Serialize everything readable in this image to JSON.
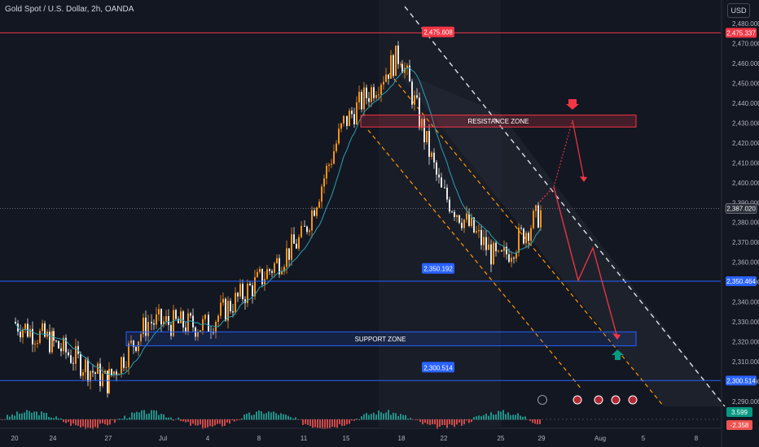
{
  "header": {
    "title": "Gold Spot / U.S. Dollar, 2h, OANDA",
    "currency": "USD"
  },
  "colors": {
    "background": "#131722",
    "bull": "#f7931a",
    "bear": "#e8e8e8",
    "ma": "#2aa0b5",
    "resistance": "#f23645",
    "support": "#2962ff",
    "arrow_red": "#f23645",
    "arrow_teal": "#089981"
  },
  "price_axis": {
    "ticks": [
      "2,480.000",
      "2,470.000",
      "2,460.000",
      "2,450.000",
      "2,440.000",
      "2,430.000",
      "2,420.000",
      "2,410.000",
      "2,400.000",
      "2,390.000",
      "2,380.000",
      "2,370.000",
      "2,360.000",
      "2,350.000",
      "2,340.000",
      "2,330.000",
      "2,320.000",
      "2,310.000",
      "2,300.000",
      "2,290.000"
    ],
    "tags": [
      {
        "label": "2,475.337",
        "price": 2475.337,
        "kind": "resistance"
      },
      {
        "label": "2,387.020",
        "price": 2387.02,
        "kind": "current"
      },
      {
        "label": "2,350.464",
        "price": 2350.464,
        "kind": "support"
      },
      {
        "label": "2,300.514",
        "price": 2300.514,
        "kind": "support"
      }
    ]
  },
  "time_axis": {
    "labels": [
      "20",
      "24",
      "27",
      "Jul",
      "4",
      "8",
      "11",
      "15",
      "18",
      "22",
      "25",
      "29",
      "Aug",
      "5",
      "8"
    ]
  },
  "annotations": {
    "resistance_zone": "RESISTANCE ZONE",
    "support_zone": "SUPPORT ZONE",
    "price_labels": [
      {
        "label": "2,475.608",
        "price": 2475.608,
        "kind": "resistance"
      },
      {
        "label": "2,350.192",
        "price": 2350.192,
        "kind": "support"
      },
      {
        "label": "2,300.514",
        "price": 2300.514,
        "kind": "support"
      }
    ]
  },
  "oscillator": {
    "values": [
      "3.599",
      "-2.358"
    ]
  },
  "chart_data": {
    "type": "line",
    "title": "Gold Spot / U.S. Dollar, 2h, OANDA",
    "xlabel": "",
    "ylabel": "",
    "categories": [
      "20",
      "24",
      "27",
      "Jul",
      "4",
      "8",
      "11",
      "15",
      "18",
      "22",
      "25",
      "29"
    ],
    "series": [
      {
        "values": [
          2330,
          2320,
          2300,
          2330,
          2328,
          2350,
          2372,
          2430,
          2465,
          2395,
          2360,
          2385
        ]
      }
    ],
    "ylim": [
      2290,
      2480
    ],
    "levels": [
      2475.337,
      2387.02,
      2350.464,
      2300.514
    ],
    "zones": {
      "resistance": [
        2428,
        2434
      ],
      "support": [
        2318,
        2325
      ]
    },
    "grid": false
  }
}
